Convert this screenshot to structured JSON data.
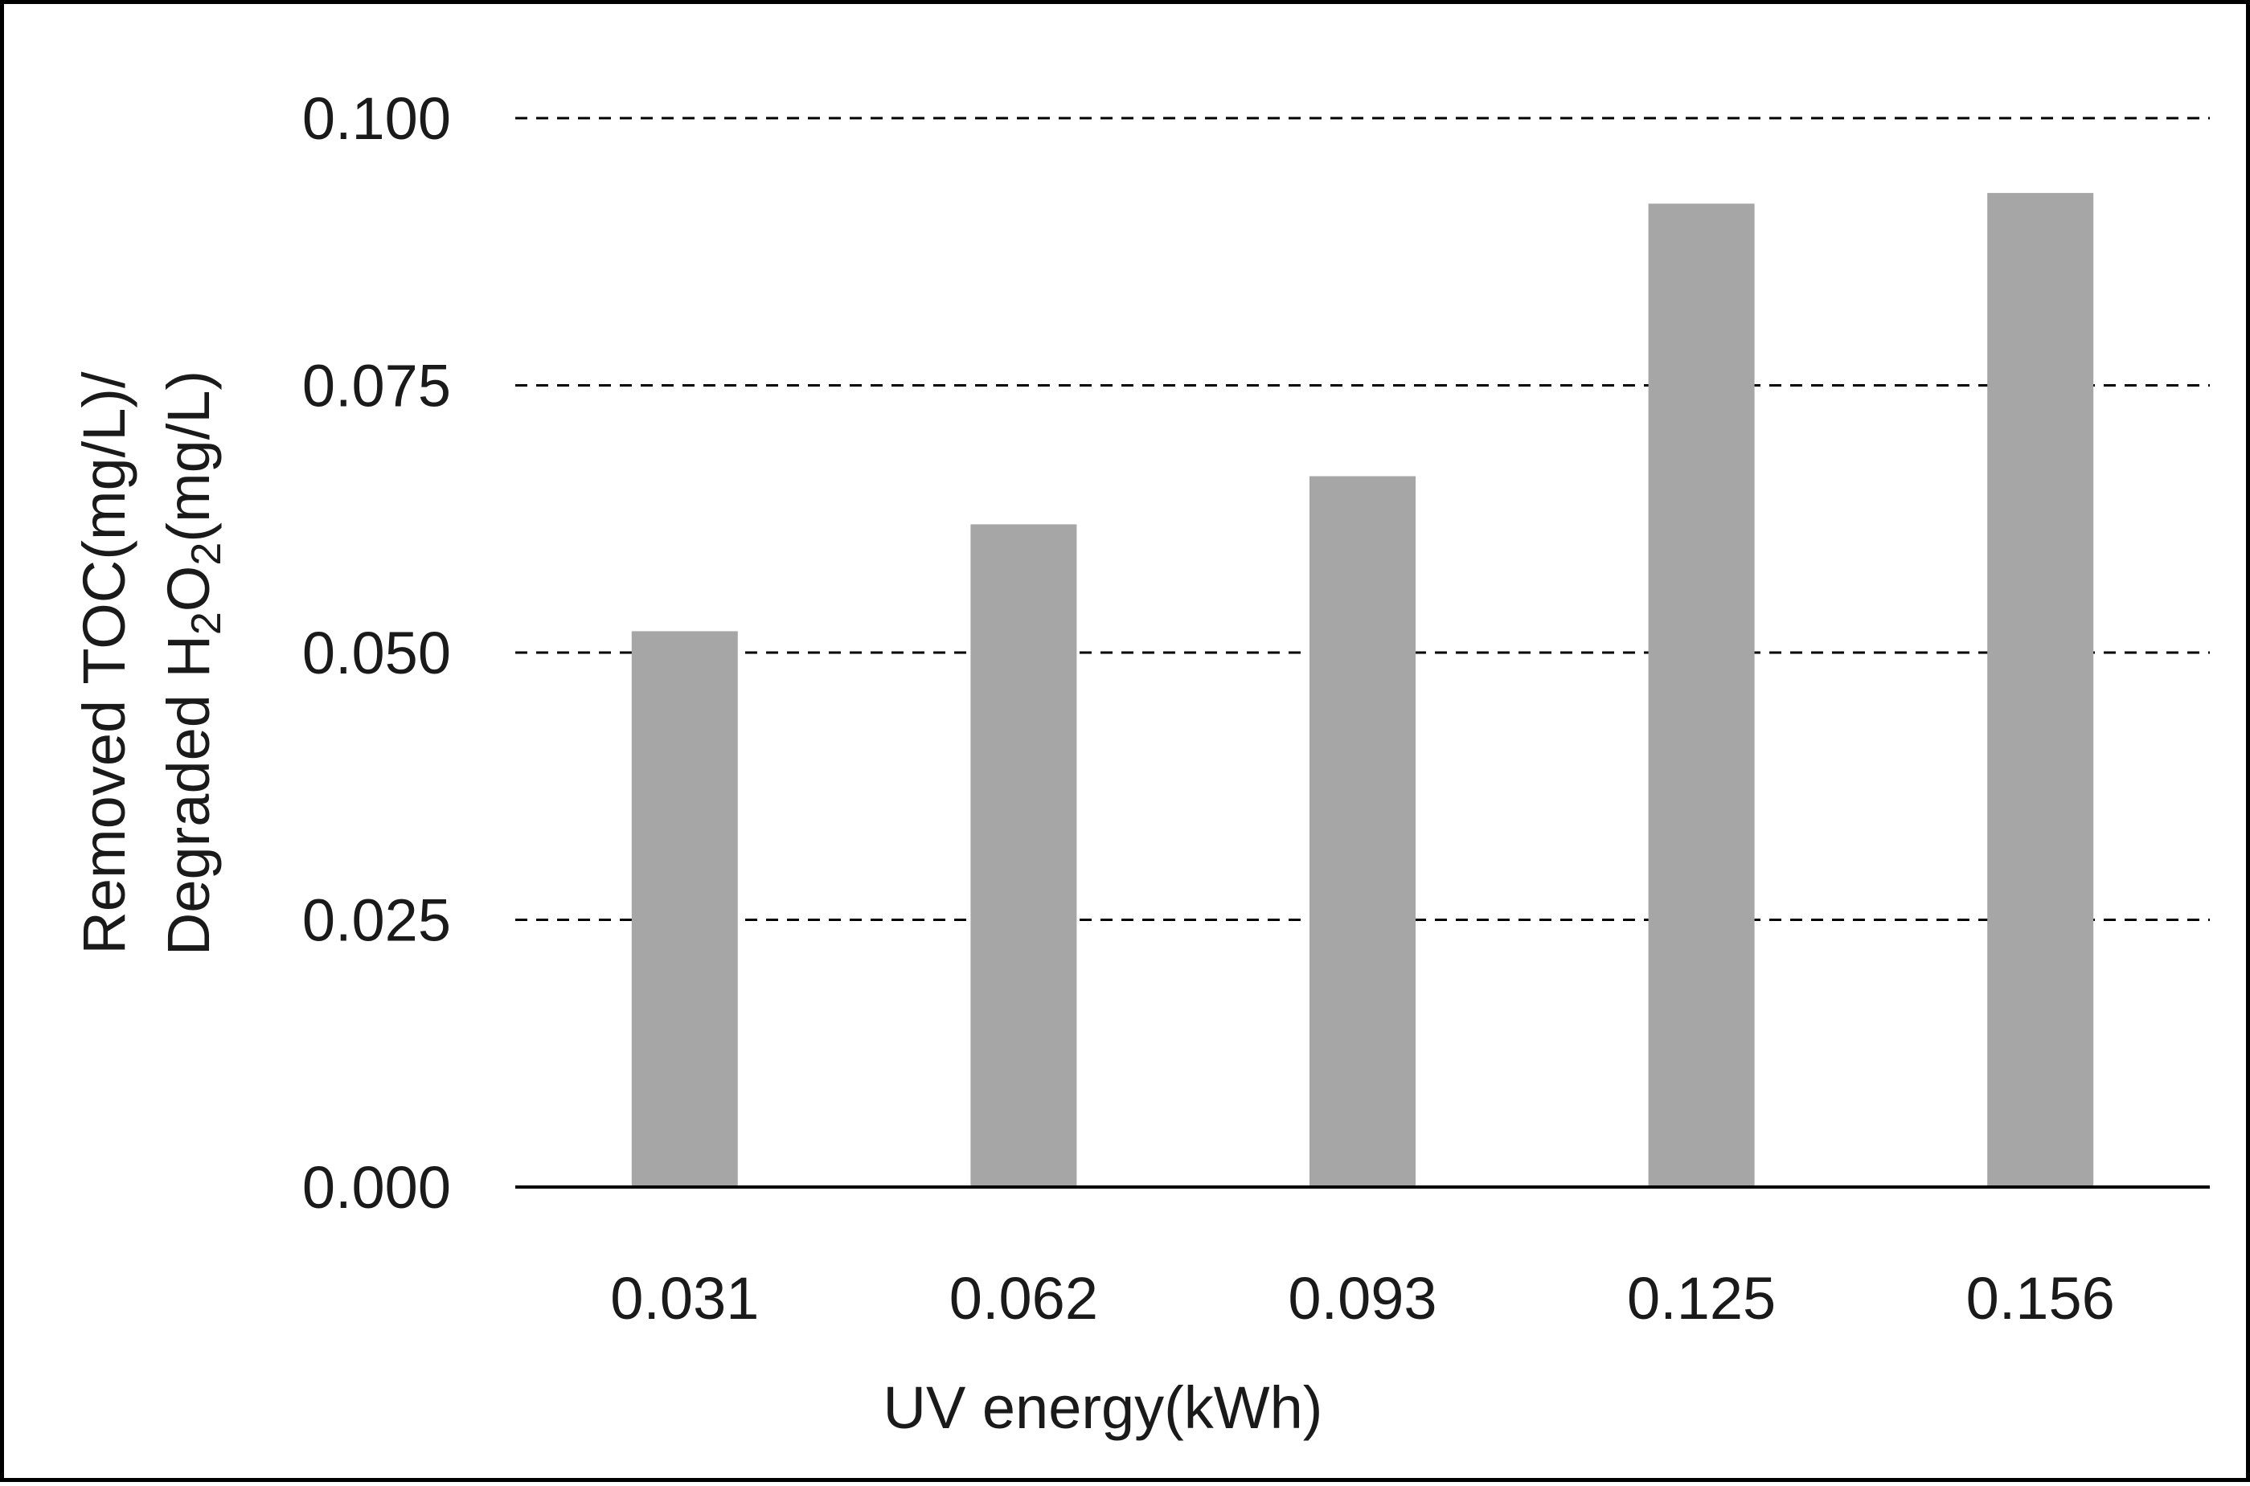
{
  "chart_data": {
    "type": "bar",
    "categories": [
      "0.031",
      "0.062",
      "0.093",
      "0.125",
      "0.156"
    ],
    "values": [
      0.052,
      0.062,
      0.0665,
      0.092,
      0.093
    ],
    "title": "",
    "xlabel": "UV energy(kWh)",
    "ylabel": {
      "line1": "Removed TOC(mg/L)/",
      "line2_prefix": "Degraded H",
      "line2_sub1": "2",
      "line2_mid": "O",
      "line2_sub2": "2",
      "line2_suffix": "(mg/L)"
    },
    "yticks": [
      "0.000",
      "0.025",
      "0.050",
      "0.075",
      "0.100"
    ],
    "ylim": [
      0,
      0.1
    ],
    "grid": "dashed horizontal",
    "legend": "none",
    "colors": {
      "bar": "#a6a6a6",
      "grid": "#000000",
      "axis": "#000000",
      "text": "#1a1a1a",
      "border": "#000000"
    }
  }
}
